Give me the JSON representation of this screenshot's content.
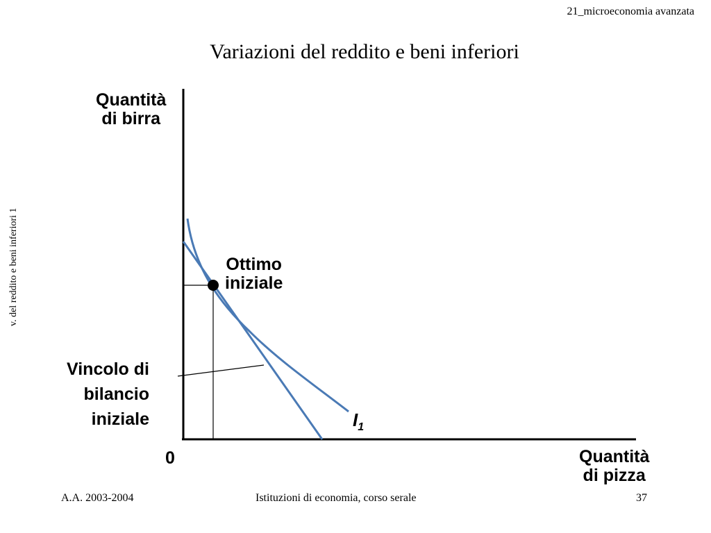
{
  "header": {
    "course_tag": "21_microeconomia avanzata"
  },
  "title": "Variazioni del reddito e beni inferiori",
  "side_label": "v. del reddito e beni inferiori 1",
  "diagram": {
    "y_axis_label_line1": "Quantità",
    "y_axis_label_line2": "di birra",
    "x_axis_label_line1": "Quantità",
    "x_axis_label_line2": "di pizza",
    "origin_label": "0",
    "optimum_label_line1": "Ottimo",
    "optimum_label_line2": "iniziale",
    "budget_label_line1": "Vincolo di",
    "budget_label_line2": "bilancio",
    "budget_label_line3": "iniziale",
    "indifference_curve_label": "I",
    "indifference_curve_subscript": "1",
    "colors": {
      "curves": "#4a7ab5",
      "axes": "#000000"
    }
  },
  "footer": {
    "left": "A.A. 2003-2004",
    "center": "Istituzioni di economia, corso serale",
    "page_number": "37"
  }
}
